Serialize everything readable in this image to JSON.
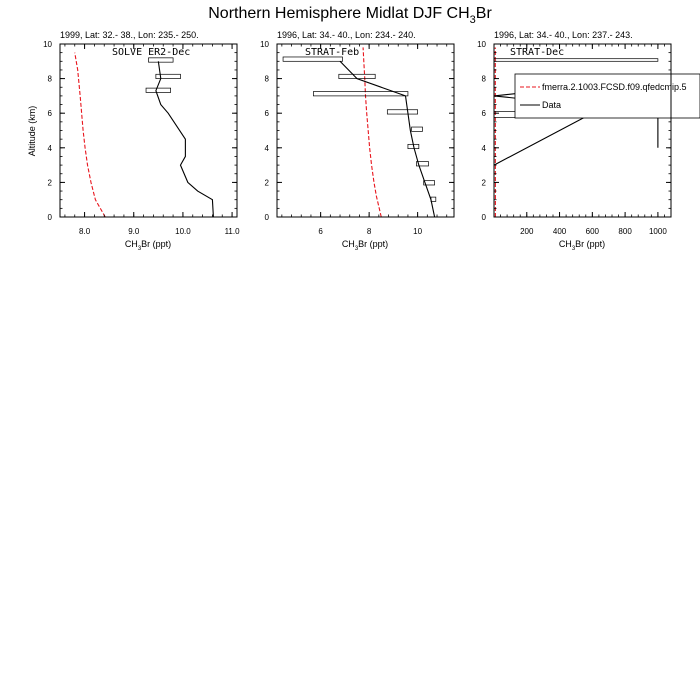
{
  "figure": {
    "title_main": "Northern Hemisphere Midlat DJF CH",
    "title_sub": "3",
    "title_end": "Br"
  },
  "colors": {
    "model": "#e8141c",
    "data": "#000000",
    "axis": "#000000"
  },
  "chart_data": [
    {
      "type": "line",
      "subtitle": "1999, Lat: 32.- 38., Lon: 235.- 250.",
      "label": "SOLVE ER2-Dec",
      "xlabel": {
        "main": "CH",
        "sub": "3",
        "end": "Br (ppt)"
      },
      "ylabel": "Altitude (km)",
      "xlim": [
        7.5,
        11.1
      ],
      "ylim": [
        0,
        10
      ],
      "xticks": [
        8.0,
        9.0,
        10.0,
        11.0
      ],
      "xtick_labels": [
        "8.0",
        "9.0",
        "10.0",
        "11.0"
      ],
      "yticks": [
        0,
        2,
        4,
        6,
        8,
        10
      ],
      "ytick_labels": [
        "0",
        "2",
        "4",
        "6",
        "8",
        "10"
      ],
      "series": [
        {
          "style": "dashed",
          "color": "#e8141c",
          "x": [
            8.42,
            8.32,
            8.22,
            8.13,
            8.06,
            8.01,
            7.97,
            7.94,
            7.91,
            7.86,
            7.8
          ],
          "y": [
            0.0,
            0.5,
            1.0,
            2.0,
            3.0,
            4.0,
            5.0,
            6.0,
            7.0,
            8.5,
            9.5
          ]
        },
        {
          "style": "solid",
          "color": "#000000",
          "x": [
            10.62,
            10.6,
            10.3,
            10.1,
            9.95,
            10.05,
            10.05,
            9.7,
            9.55,
            9.45,
            9.55,
            9.5
          ],
          "y": [
            0.0,
            1.0,
            1.5,
            2.0,
            3.0,
            3.5,
            4.5,
            6.0,
            6.5,
            7.3,
            8.0,
            9.0
          ]
        }
      ],
      "boxes": [
        {
          "x": [
            9.3,
            9.8
          ],
          "y": [
            8.95,
            9.2
          ]
        },
        {
          "x": [
            9.45,
            9.95
          ],
          "y": [
            8.0,
            8.25
          ]
        },
        {
          "x": [
            9.25,
            9.75
          ],
          "y": [
            7.2,
            7.45
          ]
        }
      ]
    },
    {
      "type": "line",
      "subtitle": "1996, Lat: 34.- 40., Lon: 234.- 240.",
      "label": "STRAT-Feb",
      "xlabel": {
        "main": "CH",
        "sub": "3",
        "end": "Br (ppt)"
      },
      "ylabel": "",
      "xlim": [
        4.2,
        11.5
      ],
      "ylim": [
        0,
        10
      ],
      "xticks": [
        6,
        8,
        10
      ],
      "xtick_labels": [
        "6",
        "8",
        "10"
      ],
      "yticks": [
        0,
        2,
        4,
        6,
        8,
        10
      ],
      "ytick_labels": [
        "0",
        "2",
        "4",
        "6",
        "8",
        "10"
      ],
      "series": [
        {
          "style": "dashed",
          "color": "#e8141c",
          "x": [
            8.5,
            8.4,
            8.3,
            8.2,
            8.1,
            8.02,
            7.96,
            7.9,
            7.85,
            7.82,
            7.78,
            7.75
          ],
          "y": [
            0.0,
            0.6,
            1.2,
            2.0,
            3.0,
            4.0,
            5.0,
            6.0,
            7.0,
            8.0,
            9.0,
            9.8
          ]
        },
        {
          "style": "solid",
          "color": "#000000",
          "x": [
            10.7,
            10.55,
            10.3,
            10.05,
            9.85,
            9.7,
            9.6,
            9.5,
            7.5,
            6.8
          ],
          "y": [
            0.0,
            1.0,
            2.0,
            3.0,
            4.0,
            5.0,
            6.0,
            7.0,
            8.0,
            9.0
          ]
        }
      ],
      "boxes": [
        {
          "x": [
            10.55,
            10.75
          ],
          "y": [
            0.9,
            1.15
          ]
        },
        {
          "x": [
            10.25,
            10.7
          ],
          "y": [
            1.85,
            2.1
          ]
        },
        {
          "x": [
            9.95,
            10.45
          ],
          "y": [
            2.95,
            3.2
          ]
        },
        {
          "x": [
            9.6,
            10.05
          ],
          "y": [
            3.95,
            4.2
          ]
        },
        {
          "x": [
            9.75,
            10.2
          ],
          "y": [
            4.95,
            5.2
          ]
        },
        {
          "x": [
            8.75,
            10.0
          ],
          "y": [
            5.95,
            6.2
          ]
        },
        {
          "x": [
            5.7,
            9.6
          ],
          "y": [
            7.0,
            7.25
          ]
        },
        {
          "x": [
            6.75,
            8.25
          ],
          "y": [
            8.0,
            8.25
          ]
        },
        {
          "x": [
            4.45,
            6.9
          ],
          "y": [
            9.0,
            9.25
          ]
        }
      ]
    },
    {
      "type": "line",
      "subtitle": "1996, Lat: 34.- 40., Lon: 237.- 243.",
      "label": "STRAT-Dec",
      "xlabel": {
        "main": "CH",
        "sub": "3",
        "end": "Br (ppt)"
      },
      "ylabel": "",
      "xlim": [
        0,
        1080
      ],
      "ylim": [
        0,
        10
      ],
      "xticks": [
        200,
        400,
        600,
        800,
        1000
      ],
      "xtick_labels": [
        "200",
        "400",
        "600",
        "800",
        "1000"
      ],
      "yticks": [
        0,
        2,
        4,
        6,
        8,
        10
      ],
      "ytick_labels": [
        "0",
        "2",
        "4",
        "6",
        "8",
        "10"
      ],
      "series": [
        {
          "style": "dashed",
          "color": "#e8141c",
          "x": [
            8.5,
            8.3,
            8.1,
            8.0,
            7.9,
            7.8
          ],
          "y": [
            0.0,
            2.0,
            4.0,
            6.0,
            8.0,
            9.8
          ]
        },
        {
          "style": "solid",
          "color": "#000000",
          "x": [
            1000,
            1000,
            1000,
            0,
            1000,
            0,
            0
          ],
          "y": [
            4.0,
            5.0,
            6.0,
            7.0,
            8.0,
            3.0,
            3.0
          ]
        }
      ],
      "boxes": [
        {
          "x": [
            0,
            1000
          ],
          "y": [
            5.75,
            6.1
          ]
        },
        {
          "x": [
            0,
            1000
          ],
          "y": [
            9.0,
            9.15
          ]
        }
      ],
      "legend": {
        "placement": "upper-right",
        "entries": [
          {
            "label": "fmerra.2.1003.FCSD.f09.qfedcmip.5",
            "style": "dashed",
            "color": "#e8141c"
          },
          {
            "label": "Data",
            "style": "solid",
            "color": "#000000"
          }
        ]
      }
    }
  ]
}
